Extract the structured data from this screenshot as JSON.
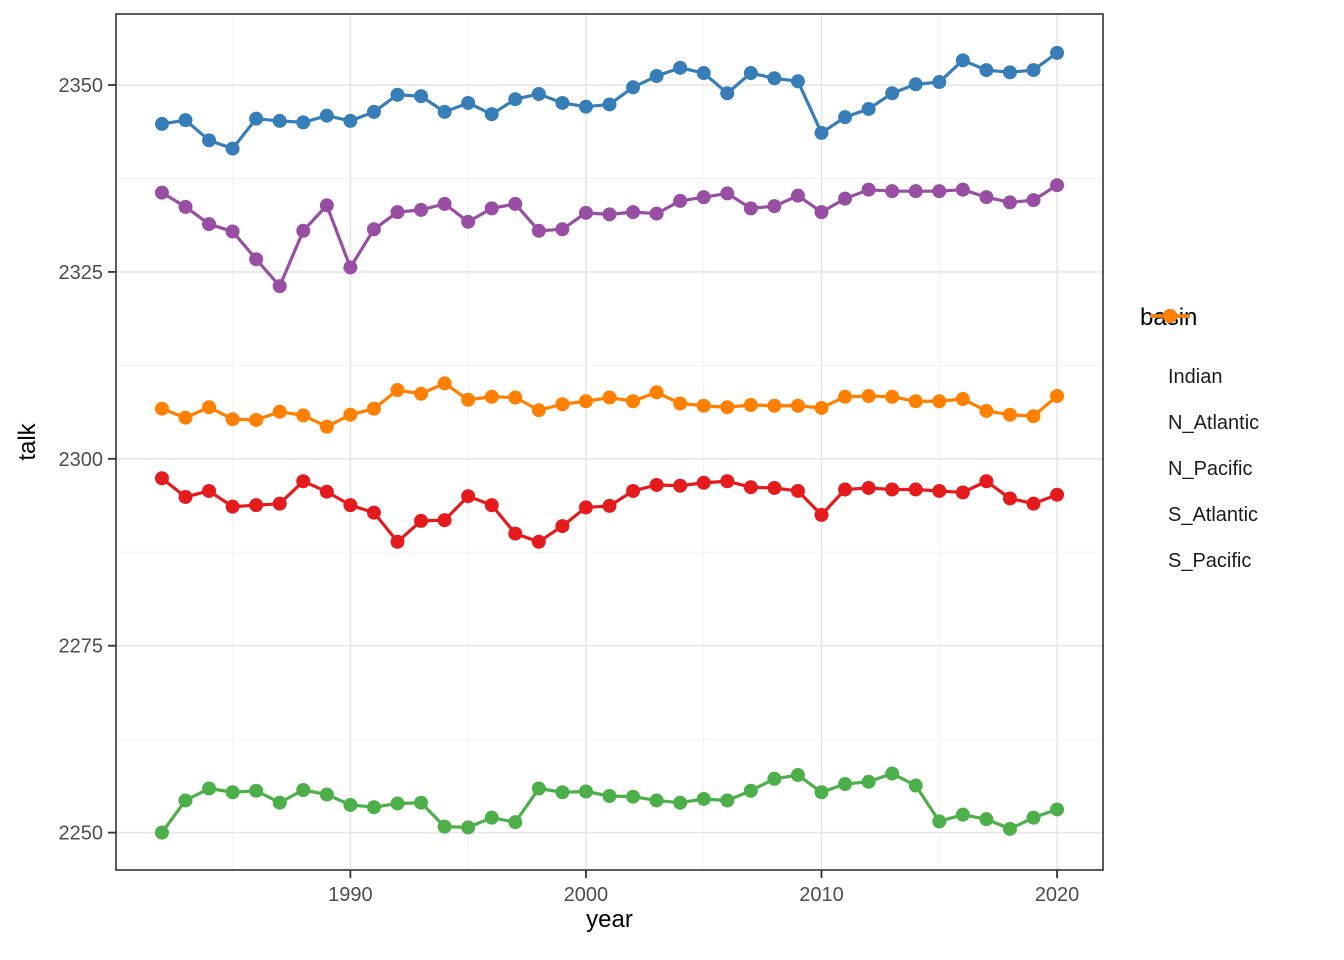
{
  "figure": {
    "background": "#FFFFFF",
    "panel_border_color": "#333333",
    "grid_major_color": "#E7E7E7",
    "grid_minor_color": "#F1F1F1",
    "tick_color": "#333333",
    "tick_label_color": "#4D4D4D",
    "axis_title_color": "#000000"
  },
  "chart_data": {
    "type": "line",
    "title": "",
    "xlabel": "year",
    "ylabel": "talk",
    "legend_title": "basin",
    "legend_position": "right",
    "grid": true,
    "marker": "point",
    "xlim": [
      1980.05,
      2021.95
    ],
    "ylim": [
      2245.0,
      2359.5
    ],
    "x_ticks": [
      1990,
      2000,
      2010,
      2020
    ],
    "x_minor_ticks": [
      1985,
      1995,
      2005,
      2015
    ],
    "y_ticks": [
      2250,
      2275,
      2300,
      2325,
      2350
    ],
    "y_minor_ticks": [
      2262.5,
      2287.5,
      2312.5,
      2337.5
    ],
    "x": [
      1982,
      1983,
      1984,
      1985,
      1986,
      1987,
      1988,
      1989,
      1990,
      1991,
      1992,
      1993,
      1994,
      1995,
      1996,
      1997,
      1998,
      1999,
      2000,
      2001,
      2002,
      2003,
      2004,
      2005,
      2006,
      2007,
      2008,
      2009,
      2010,
      2011,
      2012,
      2013,
      2014,
      2015,
      2016,
      2017,
      2018,
      2019,
      2020
    ],
    "series": [
      {
        "name": "Indian",
        "color": "#E41A1C",
        "values": [
          2297.4,
          2294.9,
          2295.7,
          2293.6,
          2293.8,
          2294.0,
          2297.0,
          2295.6,
          2293.8,
          2292.8,
          2288.9,
          2291.7,
          2291.8,
          2295.0,
          2293.8,
          2290.0,
          2288.9,
          2291.0,
          2293.5,
          2293.7,
          2295.7,
          2296.5,
          2296.4,
          2296.8,
          2297.0,
          2296.2,
          2296.1,
          2295.7,
          2292.5,
          2295.9,
          2296.1,
          2295.9,
          2295.9,
          2295.7,
          2295.5,
          2297.0,
          2294.7,
          2294.0,
          2295.2
        ]
      },
      {
        "name": "N_Atlantic",
        "color": "#377EB8",
        "values": [
          2344.8,
          2345.3,
          2342.6,
          2341.5,
          2345.5,
          2345.2,
          2345.0,
          2345.9,
          2345.2,
          2346.4,
          2348.7,
          2348.5,
          2346.4,
          2347.6,
          2346.1,
          2348.1,
          2348.8,
          2347.6,
          2347.1,
          2347.4,
          2349.7,
          2351.2,
          2352.3,
          2351.6,
          2348.9,
          2351.6,
          2350.9,
          2350.5,
          2343.6,
          2345.7,
          2346.8,
          2348.9,
          2350.1,
          2350.4,
          2353.3,
          2352.0,
          2351.7,
          2352.0,
          2354.3
        ]
      },
      {
        "name": "N_Pacific",
        "color": "#4DAF4A",
        "values": [
          2250.0,
          2254.3,
          2255.9,
          2255.4,
          2255.6,
          2254.0,
          2255.7,
          2255.1,
          2253.7,
          2253.4,
          2253.9,
          2254.0,
          2250.8,
          2250.7,
          2252.0,
          2251.4,
          2255.9,
          2255.4,
          2255.5,
          2254.9,
          2254.8,
          2254.3,
          2254.0,
          2254.5,
          2254.3,
          2255.6,
          2257.2,
          2257.7,
          2255.4,
          2256.5,
          2256.8,
          2257.9,
          2256.3,
          2251.5,
          2252.4,
          2251.8,
          2250.5,
          2252.0,
          2253.1
        ]
      },
      {
        "name": "S_Atlantic",
        "color": "#984EA3",
        "values": [
          2335.6,
          2333.7,
          2331.4,
          2330.4,
          2326.7,
          2323.1,
          2330.5,
          2333.9,
          2325.6,
          2330.7,
          2333.0,
          2333.3,
          2334.1,
          2331.7,
          2333.5,
          2334.1,
          2330.5,
          2330.7,
          2332.9,
          2332.7,
          2333.0,
          2332.8,
          2334.5,
          2335.0,
          2335.5,
          2333.5,
          2333.8,
          2335.2,
          2333.0,
          2334.8,
          2336.0,
          2335.8,
          2335.8,
          2335.8,
          2336.0,
          2335.0,
          2334.3,
          2334.6,
          2336.6
        ]
      },
      {
        "name": "S_Pacific",
        "color": "#FF7F00",
        "values": [
          2306.7,
          2305.5,
          2306.9,
          2305.3,
          2305.2,
          2306.3,
          2305.8,
          2304.3,
          2305.9,
          2306.7,
          2309.2,
          2308.7,
          2310.1,
          2307.9,
          2308.3,
          2308.2,
          2306.5,
          2307.3,
          2307.7,
          2308.2,
          2307.7,
          2308.9,
          2307.4,
          2307.1,
          2306.9,
          2307.2,
          2307.1,
          2307.1,
          2306.8,
          2308.3,
          2308.4,
          2308.3,
          2307.7,
          2307.7,
          2308.0,
          2306.4,
          2305.9,
          2305.7,
          2308.4
        ]
      }
    ]
  }
}
